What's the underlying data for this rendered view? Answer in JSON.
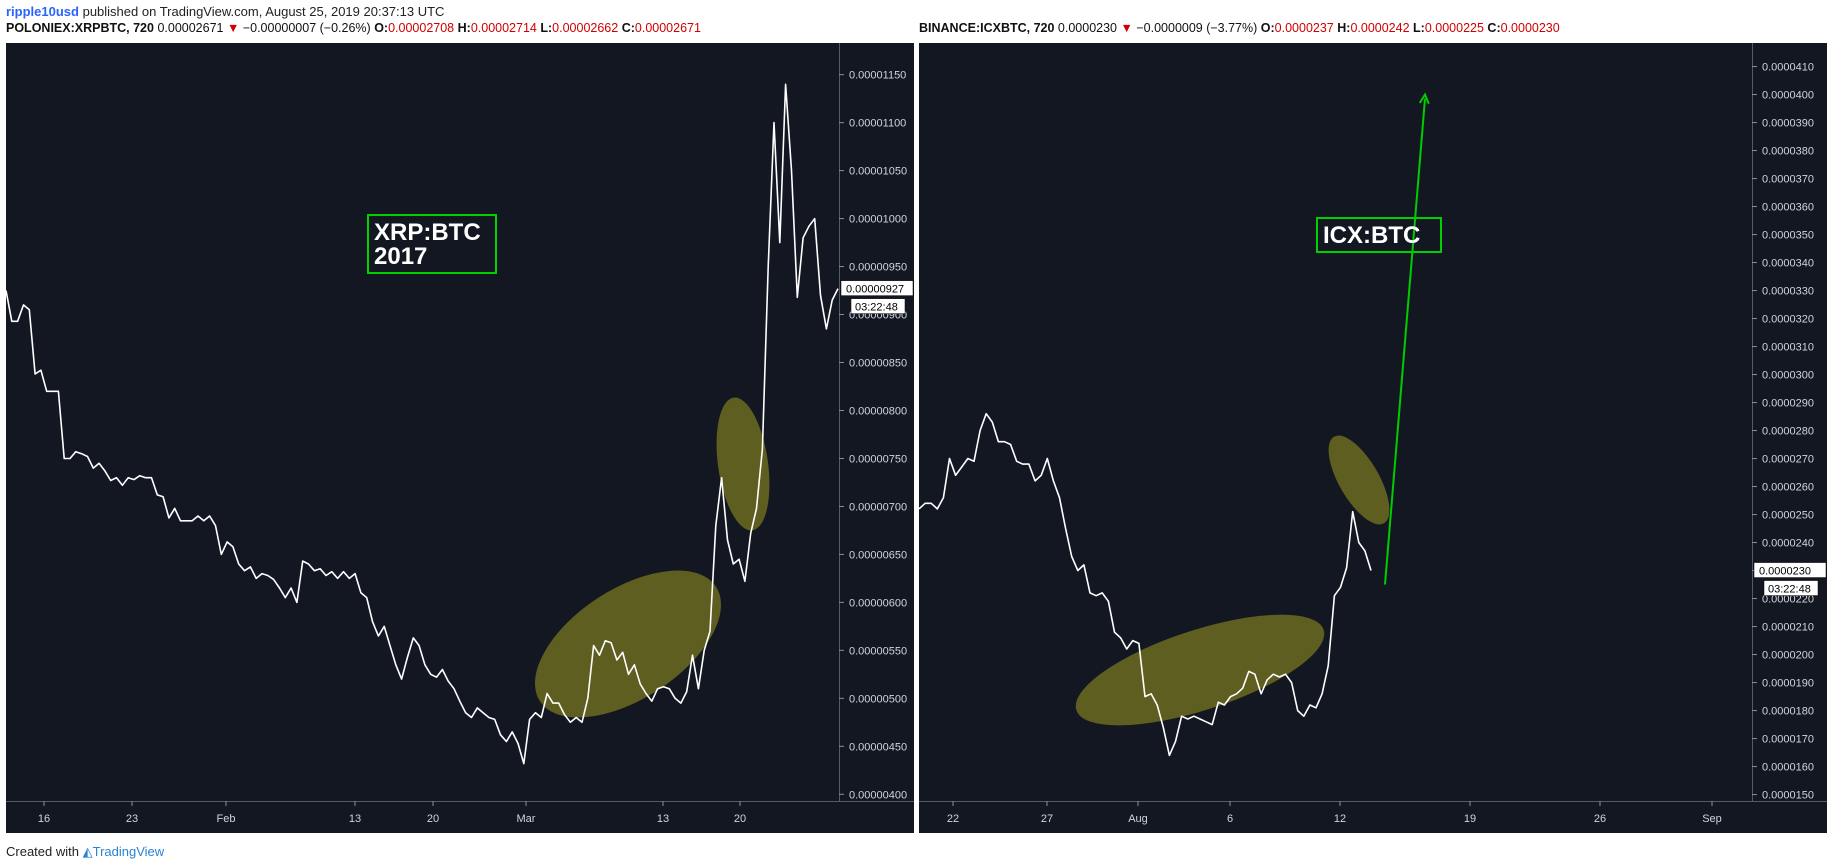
{
  "header": {
    "author": "ripple10usd",
    "published_text": "published on TradingView.com, August 25, 2019 20:37:13 UTC"
  },
  "footer": {
    "created_with": "Created with",
    "brand": "TradingView"
  },
  "colors": {
    "background": "#131722",
    "price_line": "#ffffff",
    "highlight_ellipse": "#6b6b1e",
    "annotation_box": "#00d000",
    "arrow": "#00cc00",
    "down": "#d00000"
  },
  "chart_data": [
    {
      "type": "line",
      "symbol": "POLONIEX:XRPBTC, 720",
      "legend": {
        "price": "0.00002671",
        "change": "−0.00000007 (−0.26%)",
        "o_label": "O:",
        "o": "0.00002708",
        "h_label": "H:",
        "h": "0.00002714",
        "l_label": "L:",
        "l": "0.00002662",
        "c_label": "C:",
        "c": "0.00002671"
      },
      "annotation": [
        "XRP:BTC",
        "2017"
      ],
      "x_ticks": [
        "16",
        "23",
        "Feb",
        "13",
        "20",
        "Mar",
        "13",
        "20"
      ],
      "y_ticks": [
        "0.00001150",
        "0.00001100",
        "0.00001050",
        "0.00001000",
        "0.00000950",
        "0.00000900",
        "0.00000850",
        "0.00000800",
        "0.00000750",
        "0.00000700",
        "0.00000650",
        "0.00000600",
        "0.00000550",
        "0.00000500",
        "0.00000450",
        "0.00000400"
      ],
      "ylim": [
        3.93e-06,
        1.183e-05
      ],
      "last_price_label": "0.00000927",
      "countdown": "03:22:48",
      "series": [
        {
          "values": [
            9.25e-06,
            8.93e-06,
            8.93e-06,
            9.1e-06,
            9.05e-06,
            8.38e-06,
            8.42e-06,
            8.2e-06,
            8.2e-06,
            8.2e-06,
            7.5e-06,
            7.5e-06,
            7.57e-06,
            7.55e-06,
            7.52e-06,
            7.4e-06,
            7.45e-06,
            7.37e-06,
            7.27e-06,
            7.3e-06,
            7.22e-06,
            7.3e-06,
            7.28e-06,
            7.32e-06,
            7.3e-06,
            7.3e-06,
            7.12e-06,
            7.1e-06,
            6.88e-06,
            6.98e-06,
            6.85e-06,
            6.85e-06,
            6.85e-06,
            6.9e-06,
            6.85e-06,
            6.9e-06,
            6.8e-06,
            6.5e-06,
            6.63e-06,
            6.58e-06,
            6.4e-06,
            6.33e-06,
            6.37e-06,
            6.25e-06,
            6.3e-06,
            6.28e-06,
            6.24e-06,
            6.15e-06,
            6.05e-06,
            6.15e-06,
            6e-06,
            6.43e-06,
            6.4e-06,
            6.33e-06,
            6.35e-06,
            6.28e-06,
            6.32e-06,
            6.25e-06,
            6.32e-06,
            6.25e-06,
            6.3e-06,
            6.1e-06,
            6.05e-06,
            5.8e-06,
            5.65e-06,
            5.75e-06,
            5.55e-06,
            5.35e-06,
            5.2e-06,
            5.43e-06,
            5.63e-06,
            5.55e-06,
            5.35e-06,
            5.25e-06,
            5.22e-06,
            5.3e-06,
            5.18e-06,
            5.1e-06,
            4.97e-06,
            4.85e-06,
            4.8e-06,
            4.9e-06,
            4.85e-06,
            4.8e-06,
            4.78e-06,
            4.62e-06,
            4.55e-06,
            4.65e-06,
            4.53e-06,
            4.32e-06,
            4.78e-06,
            4.85e-06,
            4.8e-06,
            5.05e-06,
            4.95e-06,
            4.95e-06,
            4.83e-06,
            4.75e-06,
            4.8e-06,
            4.75e-06,
            5e-06,
            5.55e-06,
            5.45e-06,
            5.6e-06,
            5.58e-06,
            5.4e-06,
            5.48e-06,
            5.25e-06,
            5.35e-06,
            5.15e-06,
            5.05e-06,
            4.97e-06,
            5.1e-06,
            5.12e-06,
            5.1e-06,
            5e-06,
            4.95e-06,
            5.07e-06,
            5.45e-06,
            5.1e-06,
            5.5e-06,
            5.7e-06,
            6.8e-06,
            7.3e-06,
            6.65e-06,
            6.4e-06,
            6.45e-06,
            6.22e-06,
            6.72e-06,
            6.98e-06,
            7.6e-06,
            9.5e-06,
            1.1e-05,
            9.75e-06,
            1.14e-05,
            1.05e-05,
            9.18e-06,
            9.8e-06,
            9.92e-06,
            1e-05,
            9.2e-06,
            8.85e-06,
            9.15e-06,
            9.27e-06
          ]
        }
      ]
    },
    {
      "type": "line",
      "symbol": "BINANCE:ICXBTC, 720",
      "legend": {
        "price": "0.0000230",
        "change": "−0.0000009 (−3.77%)",
        "o_label": "O:",
        "o": "0.0000237",
        "h_label": "H:",
        "h": "0.0000242",
        "l_label": "L:",
        "l": "0.0000225",
        "c_label": "C:",
        "c": "0.0000230"
      },
      "annotation": [
        "ICX:BTC"
      ],
      "x_ticks": [
        "22",
        "27",
        "Aug",
        "6",
        "12",
        "19",
        "26",
        "Sep"
      ],
      "y_ticks": [
        "0.0000410",
        "0.0000400",
        "0.0000390",
        "0.0000380",
        "0.0000370",
        "0.0000360",
        "0.0000350",
        "0.0000340",
        "0.0000330",
        "0.0000320",
        "0.0000310",
        "0.0000300",
        "0.0000290",
        "0.0000280",
        "0.0000270",
        "0.0000260",
        "0.0000250",
        "0.0000240",
        "0.0000230",
        "0.0000220",
        "0.0000210",
        "0.0000200",
        "0.0000190",
        "0.0000180",
        "0.0000170",
        "0.0000160",
        "0.0000150"
      ],
      "ylim": [
        1.477e-05,
        4.184e-05
      ],
      "last_price_label": "0.0000230",
      "countdown": "03:22:48",
      "series": [
        {
          "values": [
            2.52e-05,
            2.54e-05,
            2.54e-05,
            2.52e-05,
            2.56e-05,
            2.7e-05,
            2.64e-05,
            2.67e-05,
            2.7e-05,
            2.69e-05,
            2.8e-05,
            2.86e-05,
            2.83e-05,
            2.76e-05,
            2.76e-05,
            2.75e-05,
            2.69e-05,
            2.68e-05,
            2.68e-05,
            2.62e-05,
            2.64e-05,
            2.7e-05,
            2.62e-05,
            2.56e-05,
            2.45e-05,
            2.35e-05,
            2.3e-05,
            2.32e-05,
            2.22e-05,
            2.21e-05,
            2.22e-05,
            2.19e-05,
            2.08e-05,
            2.06e-05,
            2.02e-05,
            2.05e-05,
            2.04e-05,
            1.85e-05,
            1.86e-05,
            1.82e-05,
            1.74e-05,
            1.64e-05,
            1.69e-05,
            1.78e-05,
            1.77e-05,
            1.78e-05,
            1.77e-05,
            1.76e-05,
            1.75e-05,
            1.83e-05,
            1.82e-05,
            1.85e-05,
            1.86e-05,
            1.88e-05,
            1.94e-05,
            1.93e-05,
            1.86e-05,
            1.91e-05,
            1.93e-05,
            1.92e-05,
            1.93e-05,
            1.9e-05,
            1.8e-05,
            1.78e-05,
            1.82e-05,
            1.81e-05,
            1.86e-05,
            1.96e-05,
            2.21e-05,
            2.24e-05,
            2.31e-05,
            2.51e-05,
            2.4e-05,
            2.37e-05,
            2.3e-05
          ]
        }
      ],
      "projection_arrow": {
        "from": 2.25e-05,
        "to": 4e-05
      }
    }
  ]
}
